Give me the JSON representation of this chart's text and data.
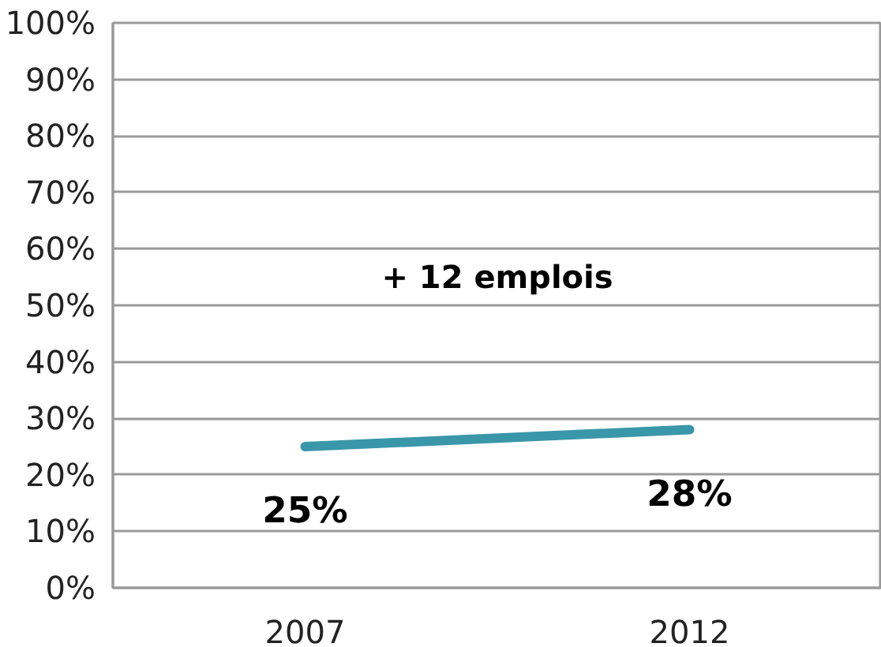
{
  "chart_data": {
    "type": "line",
    "categories": [
      "2007",
      "2012"
    ],
    "series": [
      {
        "color": "#3a97a9",
        "values": [
          25,
          28
        ],
        "value_labels": [
          "25%",
          "28%"
        ]
      }
    ],
    "ylim": [
      0,
      100
    ],
    "yticks": [
      {
        "value": 0,
        "label": "0%"
      },
      {
        "value": 10,
        "label": "10%"
      },
      {
        "value": 20,
        "label": "20%"
      },
      {
        "value": 30,
        "label": "30%"
      },
      {
        "value": 40,
        "label": "40%"
      },
      {
        "value": 50,
        "label": "50%"
      },
      {
        "value": 60,
        "label": "60%"
      },
      {
        "value": 70,
        "label": "70%"
      },
      {
        "value": 80,
        "label": "80%"
      },
      {
        "value": 90,
        "label": "90%"
      },
      {
        "value": 100,
        "label": "100%"
      }
    ],
    "grid": "y",
    "marker": "none",
    "line_style": "solid",
    "annotations": [
      "+ 12 emplois"
    ]
  }
}
